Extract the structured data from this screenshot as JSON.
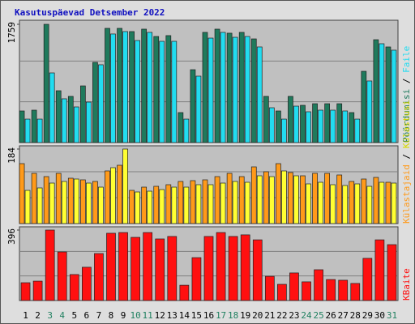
{
  "title": "Kasutuspäevad Detsember 2022",
  "chart_data": [
    {
      "type": "bar",
      "ylim": [
        0,
        1759
      ],
      "yticks": [
        1759
      ],
      "series": [
        {
          "name": "Pöördumisi",
          "color": "#1f7a5c",
          "values": [
            470,
            482,
            1759,
            771,
            687,
            843,
            1193,
            1699,
            1699,
            1651,
            1687,
            1578,
            1591,
            446,
            1084,
            1639,
            1687,
            1627,
            1639,
            1542,
            687,
            470,
            687,
            554,
            578,
            578,
            578,
            446,
            1060,
            1530,
            1422
          ]
        },
        {
          "name": "Faile",
          "color": "#22dcf0",
          "values": [
            349,
            349,
            1036,
            651,
            530,
            602,
            1157,
            1615,
            1651,
            1518,
            1639,
            1506,
            1506,
            349,
            988,
            1554,
            1639,
            1566,
            1578,
            1422,
            518,
            349,
            542,
            458,
            482,
            482,
            470,
            349,
            916,
            1470,
            1374
          ]
        }
      ]
    },
    {
      "type": "bar",
      "ylim": [
        0,
        184
      ],
      "yticks": [
        184
      ],
      "series": [
        {
          "name": "Külastajaid",
          "color": "#ff9a1a",
          "values": [
            148,
            124,
            116,
            124,
            112,
            108,
            104,
            130,
            144,
            82,
            90,
            92,
            96,
            104,
            106,
            108,
            116,
            124,
            116,
            140,
            128,
            148,
            126,
            118,
            124,
            124,
            120,
            104,
            110,
            114,
            102
          ]
        },
        {
          "name": "Külastusi",
          "color": "#ffff33",
          "values": [
            82,
            88,
            100,
            104,
            110,
            100,
            90,
            138,
            184,
            78,
            80,
            84,
            90,
            90,
            96,
            96,
            100,
            104,
            102,
            118,
            116,
            130,
            118,
            98,
            102,
            96,
            94,
            98,
            92,
            102,
            100
          ]
        }
      ]
    },
    {
      "type": "bar",
      "ylim": [
        0,
        396
      ],
      "yticks": [
        396
      ],
      "categories": [
        "1",
        "2",
        "3",
        "4",
        "5",
        "6",
        "7",
        "8",
        "9",
        "10",
        "11",
        "12",
        "13",
        "14",
        "15",
        "16",
        "17",
        "18",
        "19",
        "20",
        "21",
        "22",
        "23",
        "24",
        "25",
        "26",
        "27",
        "28",
        "29",
        "30",
        "31"
      ],
      "label_colors": [
        "#000000",
        "#000000",
        "#208060",
        "#208060",
        "#000000",
        "#000000",
        "#000000",
        "#000000",
        "#000000",
        "#208060",
        "#208060",
        "#000000",
        "#000000",
        "#000000",
        "#000000",
        "#000000",
        "#208060",
        "#208060",
        "#000000",
        "#000000",
        "#000000",
        "#000000",
        "#000000",
        "#208060",
        "#208060",
        "#000000",
        "#000000",
        "#000000",
        "#000000",
        "#000000",
        "#208060"
      ],
      "series": [
        {
          "name": "KBaite",
          "color": "#ff1010",
          "values": [
            100,
            109,
            396,
            273,
            146,
            187,
            264,
            378,
            382,
            355,
            382,
            346,
            360,
            86,
            241,
            360,
            382,
            360,
            369,
            341,
            136,
            91,
            155,
            105,
            173,
            118,
            114,
            96,
            237,
            341,
            314
          ]
        }
      ]
    }
  ]
}
